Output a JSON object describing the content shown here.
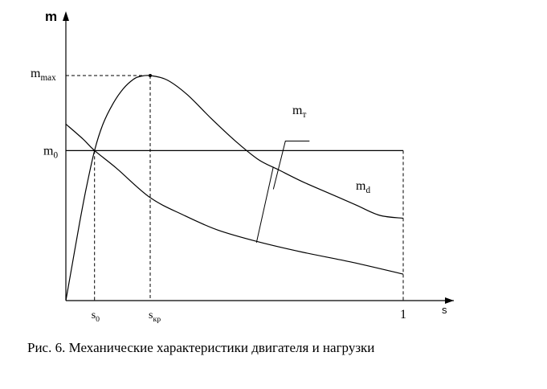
{
  "caption": "Рис. 6. Механические характеристики двигателя и нагрузки",
  "chart_data": {
    "type": "line",
    "title": "",
    "ylabel": "m",
    "xlabel": "s",
    "xlim": [
      0,
      1
    ],
    "ylim": [
      0,
      1
    ],
    "grid": false,
    "x_ticks": [
      {
        "value": 0.085,
        "label": "s",
        "sub": "0"
      },
      {
        "value": 0.25,
        "label": "s",
        "sub": "кр"
      },
      {
        "value": 1,
        "label": "1",
        "sub": ""
      }
    ],
    "y_ticks": [
      {
        "value": 0.51,
        "label": "m",
        "sub": "0"
      },
      {
        "value": 0.765,
        "label": "m",
        "sub": "max"
      }
    ],
    "series": [
      {
        "name": "m_d",
        "label_main": "m",
        "label_sub": "d",
        "x": [
          0,
          0.02,
          0.04,
          0.06,
          0.085,
          0.11,
          0.14,
          0.17,
          0.2,
          0.22,
          0.25,
          0.3,
          0.36,
          0.43,
          0.5,
          0.57,
          0.63,
          0.7,
          0.78,
          0.86,
          0.93,
          1.0
        ],
        "y": [
          0,
          0.13,
          0.26,
          0.38,
          0.51,
          0.6,
          0.67,
          0.72,
          0.752,
          0.762,
          0.765,
          0.75,
          0.7,
          0.62,
          0.545,
          0.48,
          0.445,
          0.405,
          0.365,
          0.325,
          0.29,
          0.28
        ]
      },
      {
        "name": "m_T",
        "label_main": "m",
        "label_sub": "т",
        "x": [
          0,
          0.05,
          0.085,
          0.15,
          0.25,
          0.35,
          0.45,
          0.57,
          0.7,
          0.85,
          1.0
        ],
        "y": [
          0.6,
          0.55,
          0.51,
          0.45,
          0.35,
          0.29,
          0.24,
          0.2,
          0.165,
          0.13,
          0.09
        ]
      },
      {
        "name": "m_0",
        "x": [
          0,
          1.0
        ],
        "y": [
          0.51,
          0.51
        ]
      }
    ],
    "annotations": [
      {
        "type": "point",
        "x": 0.25,
        "y": 0.765
      },
      {
        "type": "connector",
        "x1": 0.565,
        "y1": 0.197,
        "x2": 0.615,
        "y2": 0.455
      }
    ]
  }
}
